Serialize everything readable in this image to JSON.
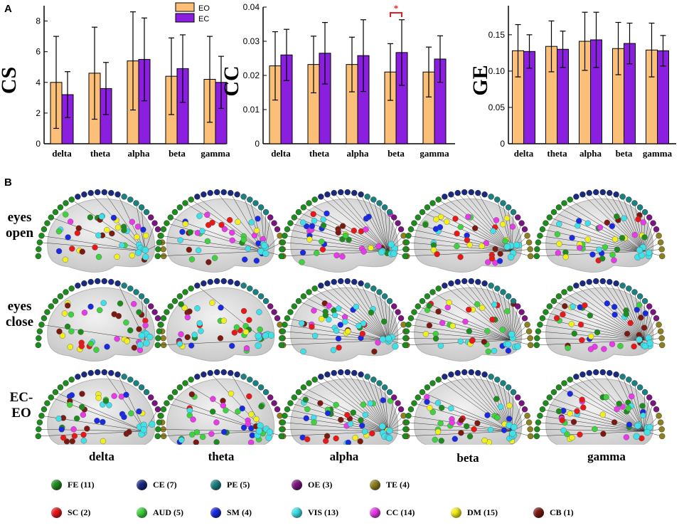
{
  "panel_labels": {
    "a": "A",
    "b": "B"
  },
  "colors": {
    "eo": "#fbbf77",
    "ec": "#8a1fe0",
    "sig": "#e02020"
  },
  "chart_data": [
    {
      "type": "bar",
      "ylabel": "CS",
      "ylim": [
        0,
        9
      ],
      "yticks": [
        0,
        2,
        4,
        6,
        8
      ],
      "yticklabels": [
        "0",
        "2",
        "4",
        "6",
        "8"
      ],
      "categories": [
        "delta",
        "theta",
        "alpha",
        "beta",
        "gamma"
      ],
      "series": [
        {
          "name": "EO",
          "values": [
            4.0,
            4.6,
            5.4,
            4.4,
            4.2
          ],
          "err": [
            3.0,
            3.0,
            3.2,
            2.5,
            2.8
          ]
        },
        {
          "name": "EC",
          "values": [
            3.2,
            3.6,
            5.5,
            4.9,
            4.0
          ],
          "err": [
            1.5,
            1.7,
            2.7,
            2.2,
            1.7
          ]
        }
      ],
      "legend": [
        "EO",
        "EC"
      ],
      "legend_position": "top-right"
    },
    {
      "type": "bar",
      "ylabel": "CC",
      "ylim": [
        0,
        0.04
      ],
      "yticks": [
        0,
        0.01,
        0.02,
        0.03,
        0.04
      ],
      "yticklabels": [
        "0",
        "0.01",
        "0.02",
        "0.03",
        "0.04"
      ],
      "categories": [
        "delta",
        "theta",
        "alpha",
        "beta",
        "gamma"
      ],
      "series": [
        {
          "name": "EO",
          "values": [
            0.0228,
            0.0232,
            0.0232,
            0.021,
            0.021
          ],
          "err": [
            0.01,
            0.0083,
            0.008,
            0.0083,
            0.0073
          ]
        },
        {
          "name": "EC",
          "values": [
            0.026,
            0.0265,
            0.0258,
            0.0267,
            0.0248
          ],
          "err": [
            0.0075,
            0.009,
            0.0105,
            0.0096,
            0.0068
          ]
        }
      ],
      "annotations": [
        {
          "category": "beta",
          "text": "*"
        }
      ]
    },
    {
      "type": "bar",
      "ylabel": "GE",
      "ylim": [
        0,
        0.19
      ],
      "yticks": [
        0,
        0.05,
        0.1,
        0.15
      ],
      "yticklabels": [
        "0",
        "0.05",
        "0.10",
        "0.15"
      ],
      "categories": [
        "delta",
        "theta",
        "alpha",
        "beta",
        "gamma"
      ],
      "series": [
        {
          "name": "EO",
          "values": [
            0.128,
            0.134,
            0.141,
            0.131,
            0.129
          ],
          "err": [
            0.036,
            0.035,
            0.04,
            0.036,
            0.037
          ]
        },
        {
          "name": "EC",
          "values": [
            0.127,
            0.13,
            0.143,
            0.138,
            0.128
          ],
          "err": [
            0.023,
            0.025,
            0.038,
            0.028,
            0.021
          ]
        }
      ]
    }
  ],
  "networks": {
    "row_labels": [
      "eyes open",
      "eyes close",
      "EC-EO"
    ],
    "col_labels": [
      "delta",
      "theta",
      "alpha",
      "beta",
      "gamma"
    ],
    "edge_density": [
      [
        0.4,
        0.75,
        0.95,
        0.9,
        0.95
      ],
      [
        0.12,
        0.08,
        0.95,
        0.95,
        0.92
      ],
      [
        0.2,
        0.25,
        0.9,
        0.9,
        0.85
      ]
    ],
    "arc_groups": [
      {
        "color": "#1e8b1e",
        "count": 11
      },
      {
        "color": "#1a2a80",
        "count": 7
      },
      {
        "color": "#1d8080",
        "count": 5
      },
      {
        "color": "#7a1580",
        "count": 3
      },
      {
        "color": "#8c8020",
        "count": 4
      }
    ]
  },
  "legend": [
    {
      "label": "FE (11)",
      "color": "#1e8b1e"
    },
    {
      "label": "CE (7)",
      "color": "#1a2a80"
    },
    {
      "label": "PE (5)",
      "color": "#1d8080"
    },
    {
      "label": "OE (3)",
      "color": "#7a1580"
    },
    {
      "label": "TE (4)",
      "color": "#8c8020"
    },
    {
      "label": "SC (2)",
      "color": "#e81818"
    },
    {
      "label": "AUD (5)",
      "color": "#3fd23f"
    },
    {
      "label": "SM (4)",
      "color": "#1a2ae0"
    },
    {
      "label": "VIS (13)",
      "color": "#40e0e8"
    },
    {
      "label": "CC (14)",
      "color": "#e83ae8"
    },
    {
      "label": "DM (15)",
      "color": "#f0f020"
    },
    {
      "label": "CB (1)",
      "color": "#7a1a10"
    }
  ]
}
